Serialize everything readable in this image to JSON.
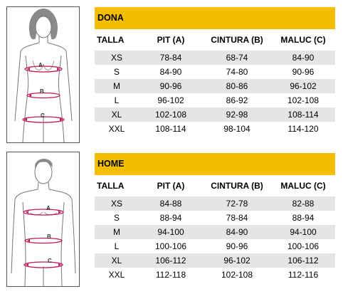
{
  "colors": {
    "header": "#F4BE00",
    "stripe": "#E5E5E5",
    "measure": "#C2185B"
  },
  "icons": {
    "dona": "female-body-outline-icon",
    "home": "male-body-outline-icon"
  },
  "dona": {
    "title": "DONA",
    "measure_labels": [
      "A",
      "B",
      "C"
    ],
    "columns": [
      "TALLA",
      "PIT (A)",
      "CINTURA (B)",
      "MALUC (C)"
    ],
    "rows": [
      [
        "XS",
        "78-84",
        "68-74",
        "84-90"
      ],
      [
        "S",
        "84-90",
        "74-80",
        "90-96"
      ],
      [
        "M",
        "90-96",
        "80-86",
        "96-102"
      ],
      [
        "L",
        "96-102",
        "86-92",
        "102-108"
      ],
      [
        "XL",
        "102-108",
        "92-98",
        "108-114"
      ],
      [
        "XXL",
        "108-114",
        "98-104",
        "114-120"
      ]
    ]
  },
  "home": {
    "title": "HOME",
    "measure_labels": [
      "A",
      "B",
      "C"
    ],
    "columns": [
      "TALLA",
      "PIT (A)",
      "CINTURA (B)",
      "MALUC (C)"
    ],
    "rows": [
      [
        "XS",
        "84-88",
        "72-78",
        "82-88"
      ],
      [
        "S",
        "88-94",
        "78-84",
        "88-94"
      ],
      [
        "M",
        "94-100",
        "84-90",
        "94-100"
      ],
      [
        "L",
        "100-106",
        "90-96",
        "100-106"
      ],
      [
        "XL",
        "106-112",
        "96-102",
        "106-112"
      ],
      [
        "XXL",
        "112-118",
        "102-108",
        "112-116"
      ]
    ]
  }
}
